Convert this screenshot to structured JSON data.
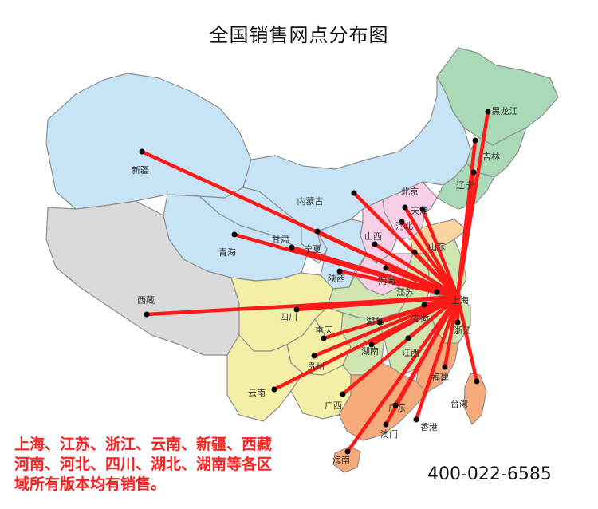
{
  "map": {
    "title": "全国销售网点分布图",
    "hub": {
      "name": "上海"
    },
    "provinces": [
      {
        "key": "heilongjiang",
        "name": "黑龙江",
        "color": "#a9d9b6"
      },
      {
        "key": "jilin",
        "name": "吉林",
        "color": "#a9d9b6"
      },
      {
        "key": "liaoning",
        "name": "辽宁",
        "color": "#a9d9b6"
      },
      {
        "key": "xinjiang",
        "name": "新疆",
        "color": "#c6e4f6"
      },
      {
        "key": "neimenggu",
        "name": "内蒙古",
        "color": "#c6e4f6"
      },
      {
        "key": "beijing",
        "name": "北京",
        "color": "#f7cfe6"
      },
      {
        "key": "tianjin",
        "name": "天津",
        "color": "#f7cfe6"
      },
      {
        "key": "hebei",
        "name": "河北",
        "color": "#f7cfe6"
      },
      {
        "key": "shanxi",
        "name": "山西",
        "color": "#f7cfe6"
      },
      {
        "key": "shandong",
        "name": "山东",
        "color": "#fbd4a0"
      },
      {
        "key": "gansu",
        "name": "甘肃",
        "color": "#c6e4f6"
      },
      {
        "key": "ningxia",
        "name": "宁夏",
        "color": "#c6e4f6"
      },
      {
        "key": "qinghai",
        "name": "青海",
        "color": "#c6e4f6"
      },
      {
        "key": "shaanxi",
        "name": "陕西",
        "color": "#c6e4f6"
      },
      {
        "key": "henan",
        "name": "河南",
        "color": "#f7cfe6"
      },
      {
        "key": "xizang",
        "name": "西藏",
        "color": "#dadada"
      },
      {
        "key": "sichuan",
        "name": "四川",
        "color": "#f3efa6"
      },
      {
        "key": "chongqing",
        "name": "重庆",
        "color": "#f3efa6"
      },
      {
        "key": "hubei",
        "name": "湖北",
        "color": "#cfe6b0"
      },
      {
        "key": "anhui",
        "name": "安徽",
        "color": "#cfe6b0"
      },
      {
        "key": "jiangsu",
        "name": "江苏",
        "color": "#cfe6b0"
      },
      {
        "key": "zhejiang",
        "name": "浙江",
        "color": "#cfe6b0"
      },
      {
        "key": "guizhou",
        "name": "贵州",
        "color": "#f3efa6"
      },
      {
        "key": "hunan",
        "name": "湖南",
        "color": "#cfe6b0"
      },
      {
        "key": "jiangxi",
        "name": "江西",
        "color": "#cfe6b0"
      },
      {
        "key": "fujian",
        "name": "福建",
        "color": "#f6a97a"
      },
      {
        "key": "yunnan",
        "name": "云南",
        "color": "#f3efa6"
      },
      {
        "key": "guangxi",
        "name": "广西",
        "color": "#f3efa6"
      },
      {
        "key": "guangdong",
        "name": "广东",
        "color": "#f6a97a"
      },
      {
        "key": "taiwan",
        "name": "台湾",
        "color": "#f6a97a"
      },
      {
        "key": "xianggang",
        "name": "香港",
        "color": "#f6a97a"
      },
      {
        "key": "aomen",
        "name": "澳门",
        "color": "#f6a97a"
      },
      {
        "key": "hainan",
        "name": "海南",
        "color": "#f6a97a"
      }
    ],
    "line_color": "#ff1a1a"
  },
  "note_lines": [
    "上海、江苏、浙江、云南、新疆、西藏",
    "河南、河北、四川、湖北、湖南等各区",
    "域所有版本均有销售。"
  ],
  "hotline": "400-022-6585"
}
